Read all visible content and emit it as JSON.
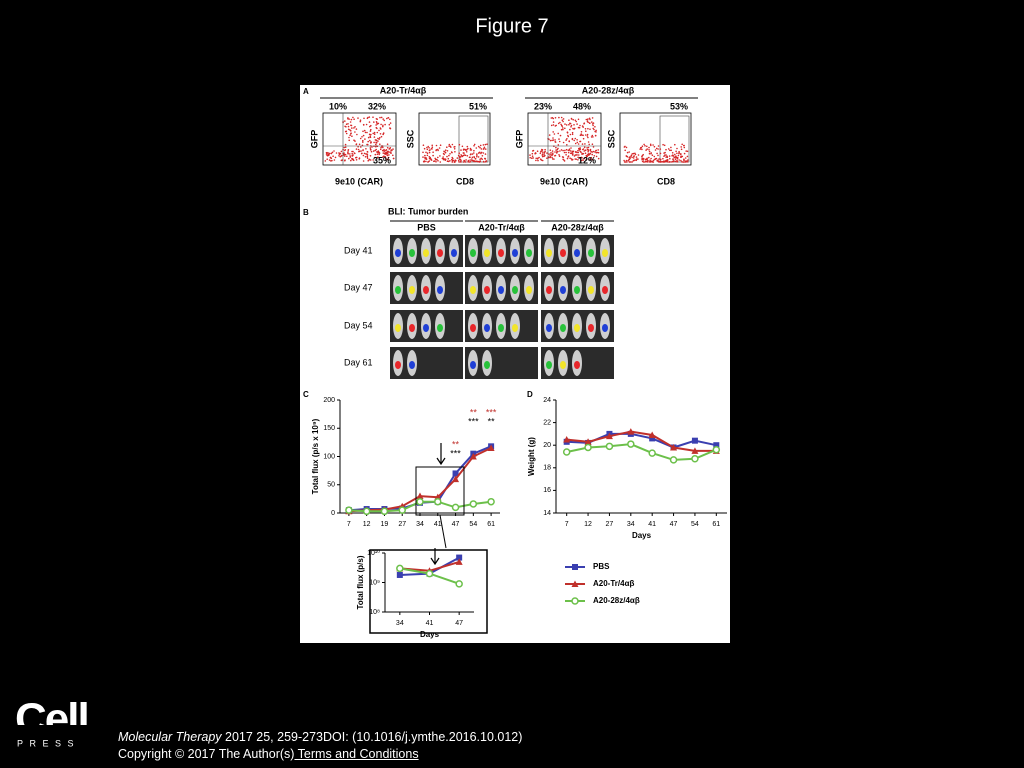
{
  "title": "Figure 7",
  "panel_a": {
    "label": "A",
    "groups": [
      {
        "title": "A20-Tr/4αβ",
        "scatter": {
          "tl": "10%",
          "tr": "32%",
          "br": "35%",
          "x_label": "9e10 (CAR)",
          "y_label": "GFP"
        },
        "gate": {
          "value": "51%",
          "x_label": "CD8",
          "y_label": "SSC"
        }
      },
      {
        "title": "A20-28z/4αβ",
        "scatter": {
          "tl": "23%",
          "tr": "48%",
          "br": "12%",
          "x_label": "9e10 (CAR)",
          "y_label": "GFP"
        },
        "gate": {
          "value": "53%",
          "x_label": "CD8",
          "y_label": "SSC"
        }
      }
    ]
  },
  "panel_b": {
    "label": "B",
    "title": "BLI: Tumor burden",
    "groups": [
      "PBS",
      "A20-Tr/4αβ",
      "A20-28z/4αβ"
    ],
    "days": [
      "Day 41",
      "Day 47",
      "Day 54",
      "Day 61"
    ]
  },
  "panel_c": {
    "label": "C"
  },
  "panel_d": {
    "label": "D"
  },
  "chart_data": [
    {
      "type": "line",
      "y_label": "Total flux (p/s x 10⁹)",
      "categories": [
        "7",
        "12",
        "19",
        "27",
        "34",
        "41",
        "47",
        "54",
        "61"
      ],
      "ylim": [
        0,
        200
      ],
      "yticks": [
        0,
        50,
        100,
        150,
        200
      ],
      "series": [
        {
          "color": "#3a3fb0",
          "marker": "square",
          "values": [
            5,
            7,
            7,
            8,
            18,
            20,
            70,
            105,
            118
          ]
        },
        {
          "color": "#c0302b",
          "marker": "triangle",
          "values": [
            3,
            5,
            6,
            12,
            30,
            28,
            60,
            100,
            115
          ]
        },
        {
          "color": "#6cc04a",
          "marker": "circle",
          "values": [
            5,
            3,
            3,
            5,
            20,
            20,
            10,
            16,
            20
          ]
        }
      ],
      "annotations": [
        {
          "at": "47",
          "text": "**",
          "color": "#c0302b"
        },
        {
          "at": "47",
          "text": "***",
          "color": "#000000"
        },
        {
          "at": "54",
          "text": "**",
          "color": "#c0302b"
        },
        {
          "at": "54",
          "text": "***",
          "color": "#000000"
        },
        {
          "at": "61",
          "text": "***",
          "color": "#c0302b"
        },
        {
          "at": "61",
          "text": "**",
          "color": "#000000"
        }
      ]
    },
    {
      "type": "line",
      "y_label": "Total flux (p/s)",
      "x_label": "Days",
      "log_scale": true,
      "categories": [
        "34",
        "41",
        "47"
      ],
      "ylim": [
        100000000,
        10000000000
      ],
      "yticks": [
        {
          "value": 100000000,
          "label": "10⁸"
        },
        {
          "value": 1000000000,
          "label": "10⁹"
        },
        {
          "value": 10000000000,
          "label": "10¹⁰"
        }
      ],
      "series": [
        {
          "color": "#3a3fb0",
          "marker": "square",
          "values": [
            1800000000,
            2000000000,
            7000000000
          ]
        },
        {
          "color": "#c0302b",
          "marker": "triangle",
          "values": [
            3000000000,
            2500000000,
            5000000000
          ]
        },
        {
          "color": "#6cc04a",
          "marker": "circle",
          "values": [
            3000000000,
            2000000000,
            900000000
          ]
        }
      ]
    },
    {
      "type": "line",
      "y_label": "Weight (g)",
      "x_label": "Days",
      "categories": [
        "7",
        "12",
        "27",
        "34",
        "41",
        "47",
        "54",
        "61"
      ],
      "ylim": [
        14,
        24
      ],
      "yticks": [
        14,
        16,
        18,
        20,
        22,
        24
      ],
      "legend": "bottom",
      "series": [
        {
          "name": "PBS",
          "color": "#3a3fb0",
          "marker": "square",
          "values": [
            20.3,
            20.2,
            21,
            21,
            20.6,
            19.8,
            20.4,
            20
          ]
        },
        {
          "name": "A20-Tr/4αβ",
          "color": "#c0302b",
          "marker": "triangle",
          "values": [
            20.5,
            20.3,
            20.8,
            21.2,
            20.9,
            19.8,
            19.5,
            19.5
          ]
        },
        {
          "name": "A20-28z/4αβ",
          "color": "#6cc04a",
          "marker": "circle",
          "values": [
            19.4,
            19.8,
            19.9,
            20.1,
            19.3,
            18.7,
            18.8,
            19.6
          ]
        }
      ]
    }
  ],
  "logo": {
    "name": "Cell",
    "sub": "PRESS"
  },
  "footer": {
    "journal": "Molecular Therapy",
    "citation": " 2017 25, 259-273DOI: (10.1016/j.ymthe.2016.10.012)",
    "copyright": "Copyright © 2017 The Author(s)",
    "link": " Terms and Conditions"
  }
}
